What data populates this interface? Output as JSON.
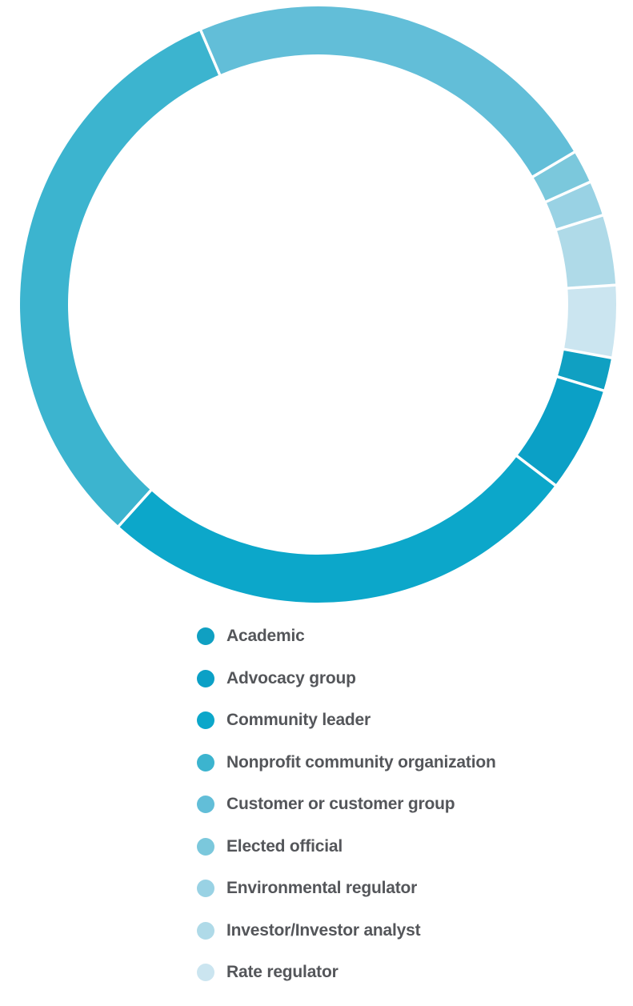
{
  "chart_data": {
    "type": "pie",
    "subtype": "donut",
    "title": "",
    "direction": "clockwise",
    "start_angle_deg_clockwise_from_12": 100.3,
    "inner_radius_ratio": 0.839,
    "separator_color": "#FFFFFF",
    "legend_position": "bottom-left",
    "legend_text_color": "#54565A",
    "background_color": "#FFFFFF",
    "segments": [
      {
        "label": "Academic",
        "percent": 1.8,
        "color": "#10A0C2"
      },
      {
        "label": "Advocacy group",
        "percent": 5.7,
        "color": "#0BA0C6"
      },
      {
        "label": "Community leader",
        "percent": 26.3,
        "color": "#0CA7CA"
      },
      {
        "label": "Nonprofit community organization",
        "percent": 31.9,
        "color": "#3CB4CF"
      },
      {
        "label": "Customer or customer group",
        "percent": 22.9,
        "color": "#62BED8"
      },
      {
        "label": "Elected official",
        "percent": 1.8,
        "color": "#7BC8DC"
      },
      {
        "label": "Environmental regulator",
        "percent": 1.9,
        "color": "#99D2E4"
      },
      {
        "label": "Investor/Investor analyst",
        "percent": 3.8,
        "color": "#AFDAE8"
      },
      {
        "label": "Rate regulator",
        "percent": 3.9,
        "color": "#CBE5F0"
      }
    ]
  }
}
